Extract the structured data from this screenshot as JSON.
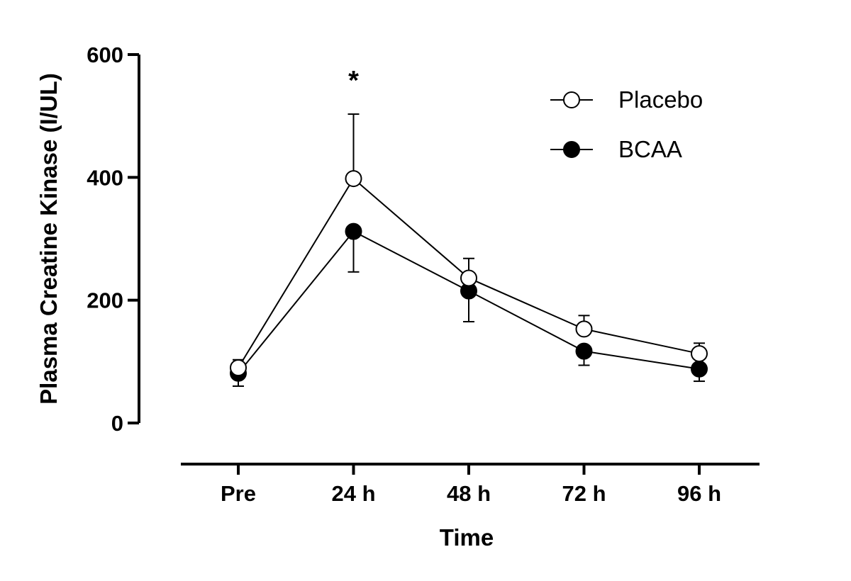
{
  "chart_data": {
    "type": "line",
    "title": "",
    "xlabel": "Time",
    "ylabel": "Plasma Creatine Kinase (I/UL)",
    "categories": [
      "Pre",
      "24 h",
      "48 h",
      "72 h",
      "96 h"
    ],
    "ylim": [
      0,
      600
    ],
    "yticks": [
      "0",
      "200",
      "400",
      "600"
    ],
    "grid": false,
    "legend_position": "top-right",
    "series": [
      {
        "name": "Placebo",
        "marker": "open-circle",
        "values": [
          90,
          398,
          236,
          153,
          113
        ],
        "error_upper": [
          103,
          503,
          268,
          175,
          130
        ]
      },
      {
        "name": "BCAA",
        "marker": "filled-circle",
        "values": [
          81,
          312,
          215,
          117,
          88
        ],
        "error_lower": [
          60,
          246,
          165,
          94,
          68
        ]
      }
    ],
    "annotations": [
      {
        "text": "*",
        "category": "24 h"
      }
    ]
  }
}
